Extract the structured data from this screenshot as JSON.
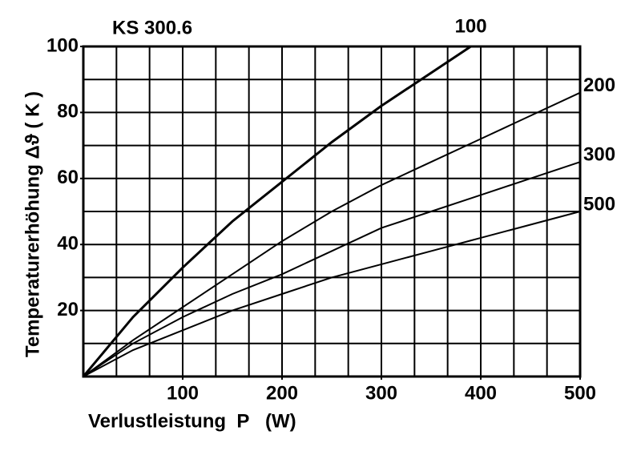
{
  "chart_data": {
    "type": "line",
    "title": "KS 300.6",
    "xlabel": "Verlustleistung  P   (W)",
    "ylabel": "Temperaturerhöhung Δϑ ( K )",
    "x": [
      0,
      50,
      100,
      150,
      200,
      250,
      300,
      350,
      390,
      400,
      450,
      500
    ],
    "series": [
      {
        "name": "100",
        "color": "#000000",
        "values": [
          0,
          18,
          33,
          47,
          59,
          71,
          82,
          92,
          100,
          null,
          null,
          null
        ]
      },
      {
        "name": "200",
        "color": "#000000",
        "values": [
          0,
          11,
          21,
          31,
          41,
          50,
          58,
          65,
          70.6,
          72,
          79,
          86
        ]
      },
      {
        "name": "300",
        "color": "#000000",
        "values": [
          0,
          10,
          18,
          25,
          31,
          38,
          45,
          50,
          54,
          55,
          60,
          65
        ]
      },
      {
        "name": "500",
        "color": "#000000",
        "values": [
          0,
          8,
          14,
          20,
          25,
          30,
          34,
          38,
          41.2,
          42,
          46,
          50
        ]
      }
    ],
    "xlim": [
      0,
      500
    ],
    "ylim": [
      0,
      100
    ],
    "xticks": [
      100,
      200,
      300,
      400,
      500
    ],
    "yticks": [
      20,
      40,
      60,
      80,
      100
    ],
    "grid": true
  }
}
